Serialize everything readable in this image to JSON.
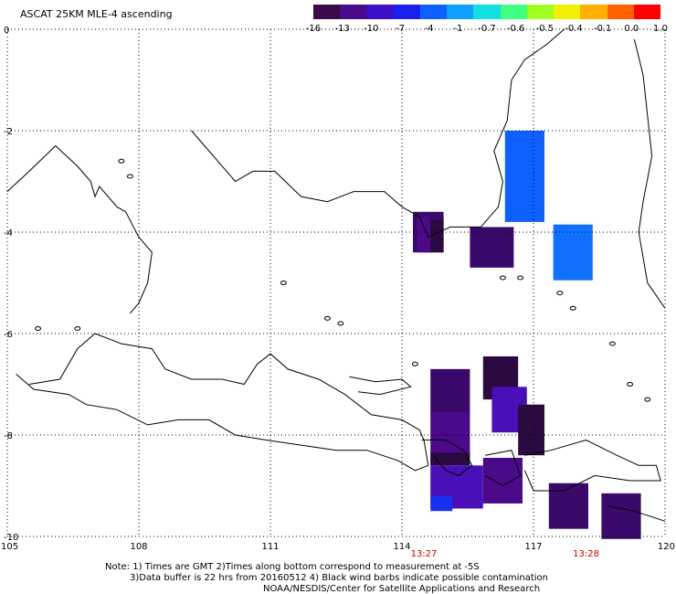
{
  "header": {
    "title": "ASCAT 25KM MLE-4 ascending"
  },
  "colorbar": {
    "labels": [
      "-16",
      "-13",
      "-10",
      "-7",
      "-4",
      "-1",
      "-0.7",
      "-0.6",
      "-0.5",
      "-0.4",
      "-0.1",
      "0.0",
      "1.0"
    ],
    "colors": [
      "#3a0a4a",
      "#4a0a8c",
      "#3a10c8",
      "#1a20f0",
      "#1060ff",
      "#10a0ff",
      "#10e0e0",
      "#40ff80",
      "#a0ff20",
      "#f0f000",
      "#ffb000",
      "#ff6000",
      "#ff0000"
    ]
  },
  "axes": {
    "x_ticks": [
      "105",
      "108",
      "111",
      "114",
      "117",
      "120"
    ],
    "y_ticks": [
      "0",
      "-2",
      "-4",
      "-6",
      "-8",
      "-10"
    ],
    "xlim": [
      105,
      120
    ],
    "ylim": [
      -10,
      0
    ],
    "grid": true,
    "grid_style": "dotted"
  },
  "pass_times": [
    {
      "label": "13:27",
      "lon": 114.5,
      "color": "#cc0000"
    },
    {
      "label": "13:28",
      "lon": 118.2,
      "color": "#cc0000"
    }
  ],
  "notes": {
    "line1": "Note: 1) Times are GMT 2)Times along bottom correspond to measurement at -5S",
    "line2": "3)Data buffer is 22 hrs from 20160512 4) Black wind barbs indicate possible contamination",
    "line3": "NOAA/NESDIS/Center for Satellite Applications and Research"
  },
  "data_cells": [
    {
      "lon0": 114.25,
      "lon1": 114.95,
      "lat0": -3.6,
      "lat1": -4.4,
      "color": "#3a0a6a"
    },
    {
      "lon0": 114.55,
      "lon1": 114.95,
      "lat0": -3.75,
      "lat1": -4.4,
      "color": "#2a0a40"
    },
    {
      "lon0": 114.35,
      "lon1": 114.65,
      "lat0": -3.7,
      "lat1": -4.4,
      "color": "#4a0a8a"
    },
    {
      "lon0": 115.55,
      "lon1": 116.55,
      "lat0": -3.9,
      "lat1": -4.7,
      "color": "#3a0a6a"
    },
    {
      "lon0": 116.35,
      "lon1": 117.25,
      "lat0": -2.0,
      "lat1": -3.8,
      "color": "#1060ff"
    },
    {
      "lon0": 117.45,
      "lon1": 118.35,
      "lat0": -3.85,
      "lat1": -4.95,
      "color": "#1070ff"
    },
    {
      "lon0": 114.65,
      "lon1": 115.55,
      "lat0": -6.7,
      "lat1": -7.6,
      "color": "#3a0a6a"
    },
    {
      "lon0": 114.65,
      "lon1": 115.55,
      "lat0": -7.55,
      "lat1": -8.55,
      "color": "#4a0a8a"
    },
    {
      "lon0": 114.65,
      "lon1": 115.55,
      "lat0": -8.35,
      "lat1": -8.6,
      "color": "#2a0a40"
    },
    {
      "lon0": 115.85,
      "lon1": 116.65,
      "lat0": -6.45,
      "lat1": -7.3,
      "color": "#2a0a40"
    },
    {
      "lon0": 116.05,
      "lon1": 116.85,
      "lat0": -7.05,
      "lat1": -7.95,
      "color": "#4a10b8"
    },
    {
      "lon0": 116.65,
      "lon1": 117.25,
      "lat0": -7.4,
      "lat1": -8.4,
      "color": "#2a0a40"
    },
    {
      "lon0": 114.65,
      "lon1": 115.85,
      "lat0": -8.6,
      "lat1": -9.45,
      "color": "#4a10b8"
    },
    {
      "lon0": 115.85,
      "lon1": 116.75,
      "lat0": -8.45,
      "lat1": -9.35,
      "color": "#4a0a8a"
    },
    {
      "lon0": 114.65,
      "lon1": 115.15,
      "lat0": -9.2,
      "lat1": -9.5,
      "color": "#1a30f0"
    },
    {
      "lon0": 117.35,
      "lon1": 118.25,
      "lat0": -8.95,
      "lat1": -9.85,
      "color": "#3a0a6a"
    },
    {
      "lon0": 118.55,
      "lon1": 119.45,
      "lat0": -9.15,
      "lat1": -10.05,
      "color": "#3a0a6a"
    }
  ],
  "coastlines": [
    [
      [
        105.0,
        -3.2
      ],
      [
        105.5,
        -2.8
      ],
      [
        106.1,
        -2.3
      ],
      [
        106.6,
        -2.7
      ],
      [
        106.9,
        -3.0
      ],
      [
        107.0,
        -3.3
      ],
      [
        107.1,
        -3.1
      ],
      [
        107.5,
        -3.5
      ],
      [
        107.7,
        -3.6
      ],
      [
        108.0,
        -4.1
      ],
      [
        108.3,
        -4.4
      ],
      [
        108.2,
        -5.0
      ],
      [
        108.0,
        -5.4
      ],
      [
        107.8,
        -5.6
      ]
    ],
    [
      [
        109.2,
        -2.0
      ],
      [
        110.2,
        -3.0
      ],
      [
        110.6,
        -2.8
      ],
      [
        111.1,
        -2.8
      ],
      [
        111.7,
        -3.3
      ],
      [
        112.3,
        -3.4
      ],
      [
        112.9,
        -3.2
      ],
      [
        113.6,
        -3.2
      ],
      [
        114.0,
        -3.5
      ],
      [
        114.4,
        -3.7
      ],
      [
        114.6,
        -4.1
      ],
      [
        115.1,
        -3.9
      ],
      [
        115.8,
        -3.9
      ],
      [
        116.2,
        -3.5
      ],
      [
        116.3,
        -3.0
      ],
      [
        116.1,
        -2.4
      ],
      [
        116.4,
        -1.8
      ],
      [
        116.5,
        -1.0
      ],
      [
        116.8,
        -0.6
      ],
      [
        117.3,
        -0.3
      ],
      [
        117.7,
        0.0
      ]
    ],
    [
      [
        119.3,
        -0.2
      ],
      [
        119.5,
        -0.9
      ],
      [
        119.7,
        -2.5
      ],
      [
        119.5,
        -3.4
      ],
      [
        119.4,
        -4.0
      ],
      [
        119.6,
        -5.0
      ],
      [
        120.0,
        -5.5
      ]
    ],
    [
      [
        105.5,
        -7.0
      ],
      [
        106.2,
        -6.9
      ],
      [
        106.6,
        -6.3
      ],
      [
        107.0,
        -6.0
      ],
      [
        107.6,
        -6.2
      ],
      [
        108.3,
        -6.3
      ],
      [
        108.6,
        -6.7
      ],
      [
        109.2,
        -6.9
      ],
      [
        109.9,
        -6.9
      ],
      [
        110.4,
        -7.0
      ],
      [
        110.7,
        -6.6
      ],
      [
        111.0,
        -6.4
      ],
      [
        111.4,
        -6.7
      ],
      [
        112.1,
        -6.9
      ],
      [
        112.7,
        -7.2
      ],
      [
        113.3,
        -7.6
      ],
      [
        114.0,
        -7.7
      ],
      [
        114.4,
        -7.9
      ],
      [
        114.5,
        -8.1
      ],
      [
        114.6,
        -8.6
      ],
      [
        114.3,
        -8.7
      ],
      [
        113.9,
        -8.5
      ],
      [
        113.2,
        -8.3
      ],
      [
        112.5,
        -8.3
      ],
      [
        111.7,
        -8.2
      ],
      [
        110.9,
        -8.1
      ],
      [
        110.2,
        -8.0
      ],
      [
        109.6,
        -7.7
      ],
      [
        108.9,
        -7.7
      ],
      [
        108.2,
        -7.8
      ],
      [
        107.5,
        -7.5
      ],
      [
        106.8,
        -7.4
      ],
      [
        106.4,
        -7.2
      ],
      [
        105.6,
        -7.1
      ],
      [
        105.2,
        -6.8
      ]
    ],
    [
      [
        112.8,
        -6.85
      ],
      [
        113.4,
        -6.95
      ],
      [
        114.0,
        -6.9
      ],
      [
        114.2,
        -7.05
      ],
      [
        113.5,
        -7.2
      ],
      [
        113.0,
        -7.15
      ]
    ],
    [
      [
        114.45,
        -8.1
      ],
      [
        115.0,
        -8.1
      ],
      [
        115.4,
        -8.3
      ],
      [
        115.6,
        -8.6
      ],
      [
        115.3,
        -8.8
      ],
      [
        115.0,
        -8.7
      ],
      [
        114.7,
        -8.4
      ]
    ],
    [
      [
        115.9,
        -8.4
      ],
      [
        116.5,
        -8.3
      ],
      [
        116.7,
        -8.8
      ],
      [
        116.3,
        -9.0
      ],
      [
        115.9,
        -8.8
      ]
    ],
    [
      [
        116.8,
        -8.4
      ],
      [
        117.4,
        -8.3
      ],
      [
        118.2,
        -8.1
      ],
      [
        118.9,
        -8.4
      ],
      [
        119.4,
        -8.6
      ],
      [
        119.8,
        -8.6
      ],
      [
        119.9,
        -8.9
      ],
      [
        119.2,
        -8.9
      ],
      [
        118.4,
        -8.8
      ],
      [
        117.7,
        -9.1
      ],
      [
        117.0,
        -9.1
      ],
      [
        116.8,
        -8.7
      ]
    ],
    [
      [
        118.7,
        -9.4
      ],
      [
        119.3,
        -9.5
      ],
      [
        120.0,
        -9.7
      ]
    ]
  ],
  "islands": [
    [
      107.6,
      -2.6
    ],
    [
      107.8,
      -2.9
    ],
    [
      112.3,
      -5.7
    ],
    [
      112.6,
      -5.8
    ],
    [
      114.3,
      -6.6
    ],
    [
      116.3,
      -4.9
    ],
    [
      116.7,
      -4.9
    ],
    [
      117.6,
      -5.2
    ],
    [
      117.9,
      -5.5
    ],
    [
      118.8,
      -6.2
    ],
    [
      119.2,
      -7.0
    ],
    [
      119.6,
      -7.3
    ],
    [
      105.7,
      -5.9
    ],
    [
      106.6,
      -5.9
    ],
    [
      111.3,
      -5.0
    ]
  ]
}
